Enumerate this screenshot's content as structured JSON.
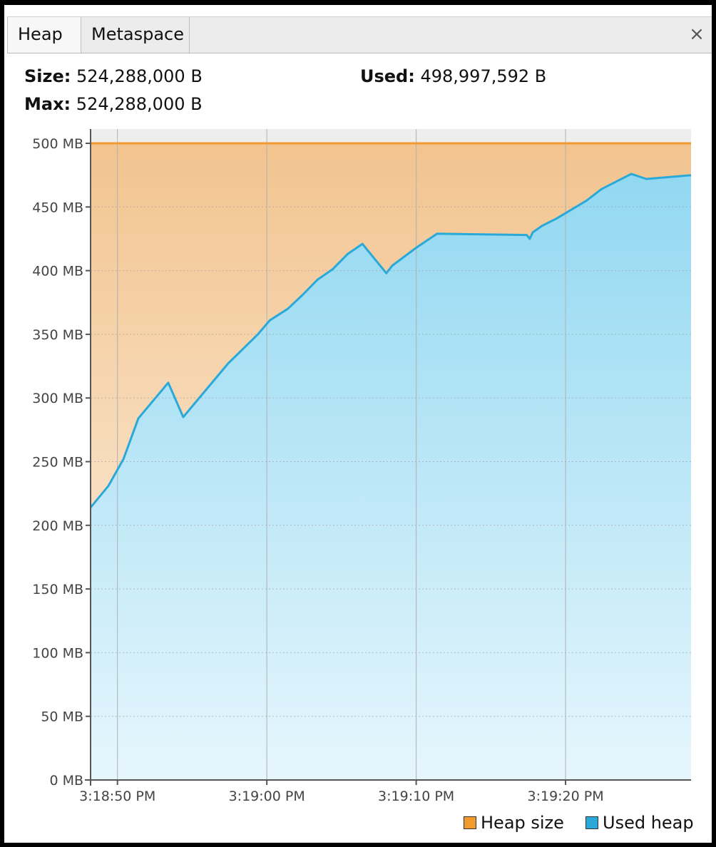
{
  "tabs": [
    {
      "label": "Heap",
      "active": true
    },
    {
      "label": "Metaspace",
      "active": false
    }
  ],
  "close_label": "×",
  "info": {
    "size_label": "Size:",
    "size_value": "524,288,000 B",
    "used_label": "Used:",
    "used_value": "498,997,592 B",
    "max_label": "Max:",
    "max_value": "524,288,000 B"
  },
  "colors": {
    "heap_size": "#f39a2e",
    "used_heap": "#2aa9d8"
  },
  "chart_data": {
    "type": "area",
    "title": "",
    "xlabel": "",
    "ylabel": "",
    "x_ticks": [
      "3:18:50 PM",
      "3:19:00 PM",
      "3:19:10 PM",
      "3:19:20 PM"
    ],
    "x_tick_values": [
      50,
      60,
      70,
      80
    ],
    "xlim": [
      48.2,
      88.4
    ],
    "y_ticks": [
      "0 MB",
      "50 MB",
      "100 MB",
      "150 MB",
      "200 MB",
      "250 MB",
      "300 MB",
      "350 MB",
      "400 MB",
      "450 MB",
      "500 MB"
    ],
    "ylim": [
      0,
      500
    ],
    "grid": true,
    "legend_position": "bottom-right",
    "series": [
      {
        "name": "Heap size",
        "x": [
          48.2,
          88.4
        ],
        "y": [
          500,
          500
        ]
      },
      {
        "name": "Used heap",
        "x": [
          48.2,
          49.4,
          50.4,
          51.4,
          53.4,
          54.4,
          57.4,
          59.4,
          60.2,
          61.4,
          62.4,
          63.4,
          64.4,
          65.4,
          66.4,
          68.0,
          68.4,
          70.0,
          71.4,
          77.4,
          77.6,
          77.8,
          78.4,
          79.4,
          81.4,
          82.4,
          83.4,
          84.4,
          85.4,
          88.4
        ],
        "y": [
          214,
          231,
          252,
          284,
          312,
          285,
          327,
          350,
          361,
          370,
          381,
          393,
          401,
          413,
          421,
          398,
          404,
          418,
          429,
          428,
          425,
          430,
          435,
          441,
          455,
          464,
          470,
          476,
          472,
          475
        ]
      }
    ]
  },
  "legend": [
    {
      "label": "Heap size"
    },
    {
      "label": "Used heap"
    }
  ]
}
